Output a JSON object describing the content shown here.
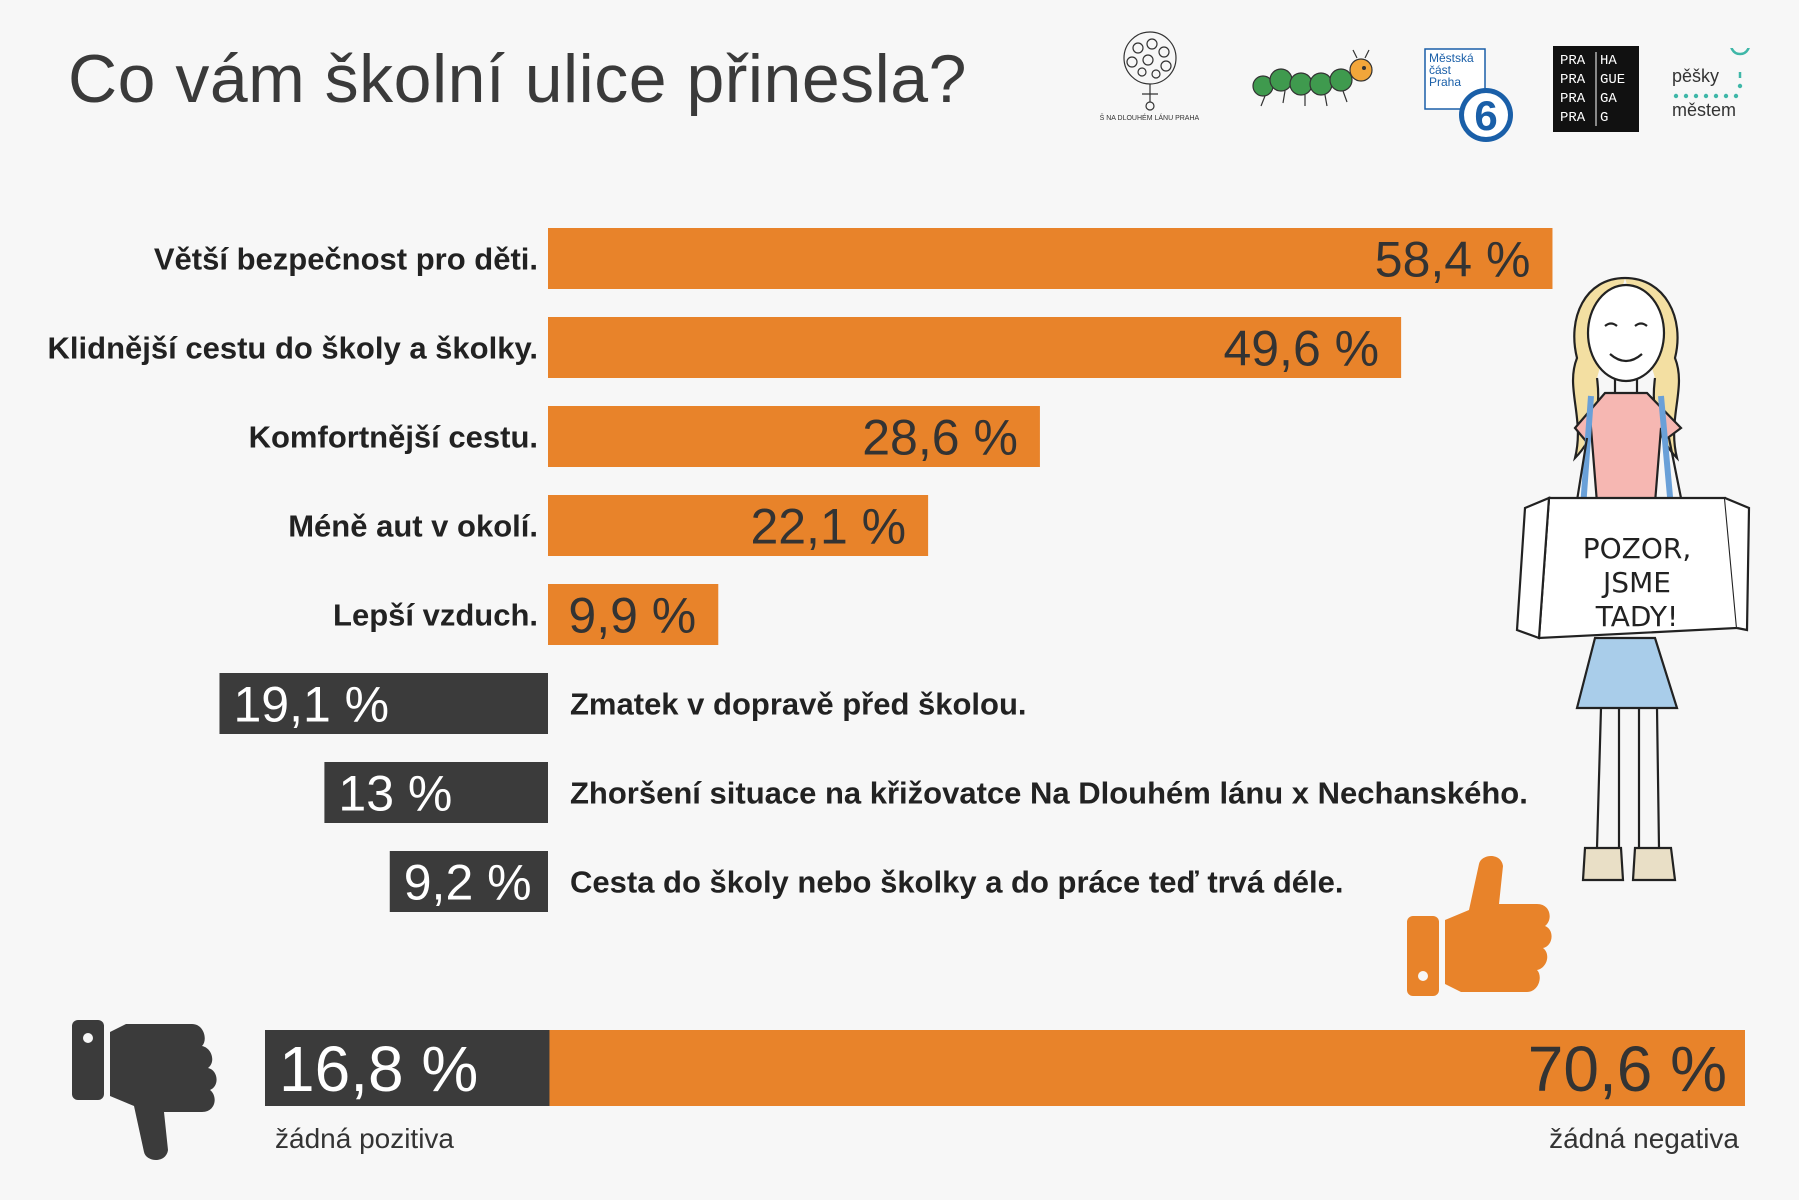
{
  "title": "Co vám školní ulice přinesla?",
  "logos": {
    "school": "ZŠ NA DLOUHÉM LÁNU PRAHA 6",
    "district_line1": "Městská",
    "district_line2": "část",
    "district_line3": "Praha",
    "district_number": "6",
    "prague_rows": [
      "PRA",
      "HA",
      "PRA",
      "GUE",
      "PRA",
      "GA",
      "PRA",
      "G"
    ],
    "pesky_line1": "pěšky",
    "pesky_line2": "městem"
  },
  "illustration": {
    "sign_text_1": "POZOR,",
    "sign_text_2": "JSME",
    "sign_text_3": "TADY!"
  },
  "icons": {
    "thumb_up": "thumbs-up-icon",
    "thumb_down": "thumbs-down-icon"
  },
  "colors": {
    "positive": "#e8832a",
    "negative": "#3b3b3b",
    "district_blue": "#1a5fa8",
    "pesky_teal": "#3fb7a8"
  },
  "chart_data": [
    {
      "type": "bar",
      "orientation": "horizontal",
      "positive": {
        "categories": [
          "Větší bezpečnost pro děti.",
          "Klidnější cestu do školy a školky.",
          "Komfortnější cestu.",
          "Méně aut v okolí.",
          "Lepší vzduch."
        ],
        "values": [
          58.4,
          49.6,
          28.6,
          22.1,
          9.9
        ],
        "value_labels": [
          "58,4 %",
          "49,6 %",
          "28,6 %",
          "22,1 %",
          "9,9 %"
        ]
      },
      "negative": {
        "categories": [
          "Zmatek v dopravě před školou.",
          "Zhoršení situace na křižovatce Na Dlouhém lánu x Nechanského.",
          "Cesta do školy nebo školky a do práce teď trvá déle."
        ],
        "values": [
          19.1,
          13,
          9.2
        ],
        "value_labels": [
          "19,1 %",
          "13 %",
          "9,2 %"
        ]
      },
      "unit": "%"
    },
    {
      "type": "bar",
      "orientation": "horizontal",
      "stacked": true,
      "segments": [
        {
          "value": 16.8,
          "value_label": "16,8 %",
          "caption": "žádná pozitiva"
        },
        {
          "value": 70.6,
          "value_label": "70,6 %",
          "caption": "žádná negativa"
        }
      ],
      "unit": "%"
    }
  ]
}
